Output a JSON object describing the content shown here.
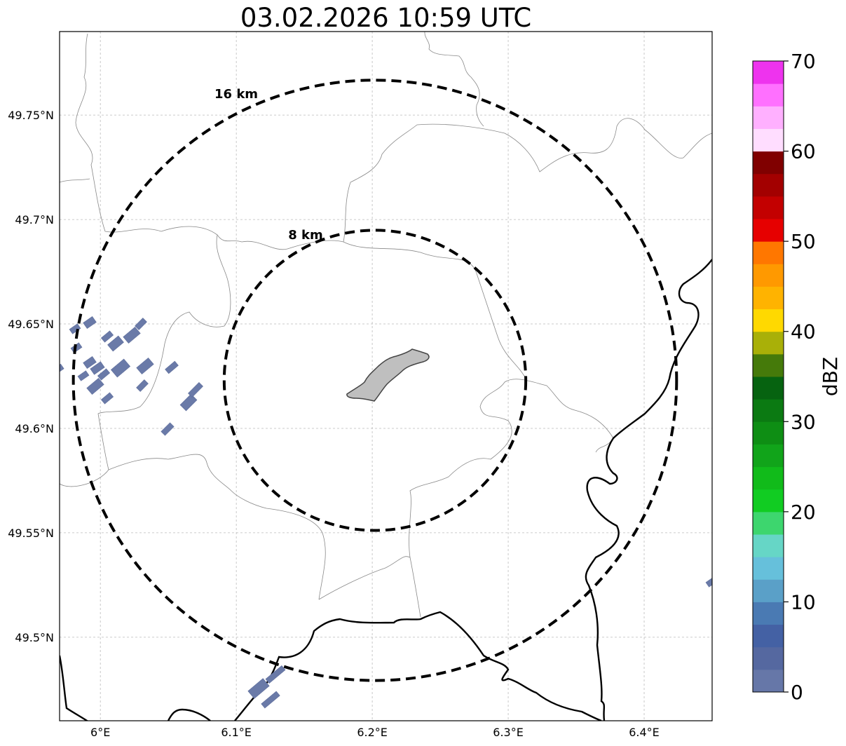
{
  "title": "03.02.2026 10:59 UTC",
  "map": {
    "lon_range": [
      5.97,
      6.45
    ],
    "lat_range": [
      49.46,
      49.79
    ],
    "lon_ticks": [
      {
        "value": 6.0,
        "label": "6°E"
      },
      {
        "value": 6.1,
        "label": "6.1°E"
      },
      {
        "value": 6.2,
        "label": "6.2°E"
      },
      {
        "value": 6.3,
        "label": "6.3°E"
      },
      {
        "value": 6.4,
        "label": "6.4°E"
      }
    ],
    "lat_ticks": [
      {
        "value": 49.75,
        "label": "49.75°N"
      },
      {
        "value": 49.7,
        "label": "49.7°N"
      },
      {
        "value": 49.65,
        "label": "49.65°N"
      },
      {
        "value": 49.6,
        "label": "49.6°N"
      },
      {
        "value": 49.55,
        "label": "49.55°N"
      },
      {
        "value": 49.5,
        "label": "49.5°N"
      }
    ],
    "grid": true,
    "center": {
      "lon": 6.202,
      "lat": 49.623
    },
    "range_rings": [
      {
        "radius_km": 8,
        "label": "8 km"
      },
      {
        "radius_km": 16,
        "label": "16 km"
      }
    ]
  },
  "colorbar": {
    "label": "dBZ",
    "min": 0,
    "max": 70,
    "tick_labels": [
      "0",
      "10",
      "20",
      "30",
      "40",
      "50",
      "60",
      "70"
    ],
    "colors": [
      "#6677a8",
      "#5568a0",
      "#4461a4",
      "#4a7ab3",
      "#5aa0c8",
      "#66c0db",
      "#66d6c6",
      "#3dd66e",
      "#11cc22",
      "#11bb1a",
      "#11a41a",
      "#0e8e14",
      "#0b7a12",
      "#066310",
      "#457a0a",
      "#a9b008",
      "#ffd900",
      "#ffb300",
      "#ff9900",
      "#ff7700",
      "#e60000",
      "#c30000",
      "#a30000",
      "#800000",
      "#ffddff",
      "#ffb0ff",
      "#ff70ff",
      "#ee33ee"
    ]
  }
}
